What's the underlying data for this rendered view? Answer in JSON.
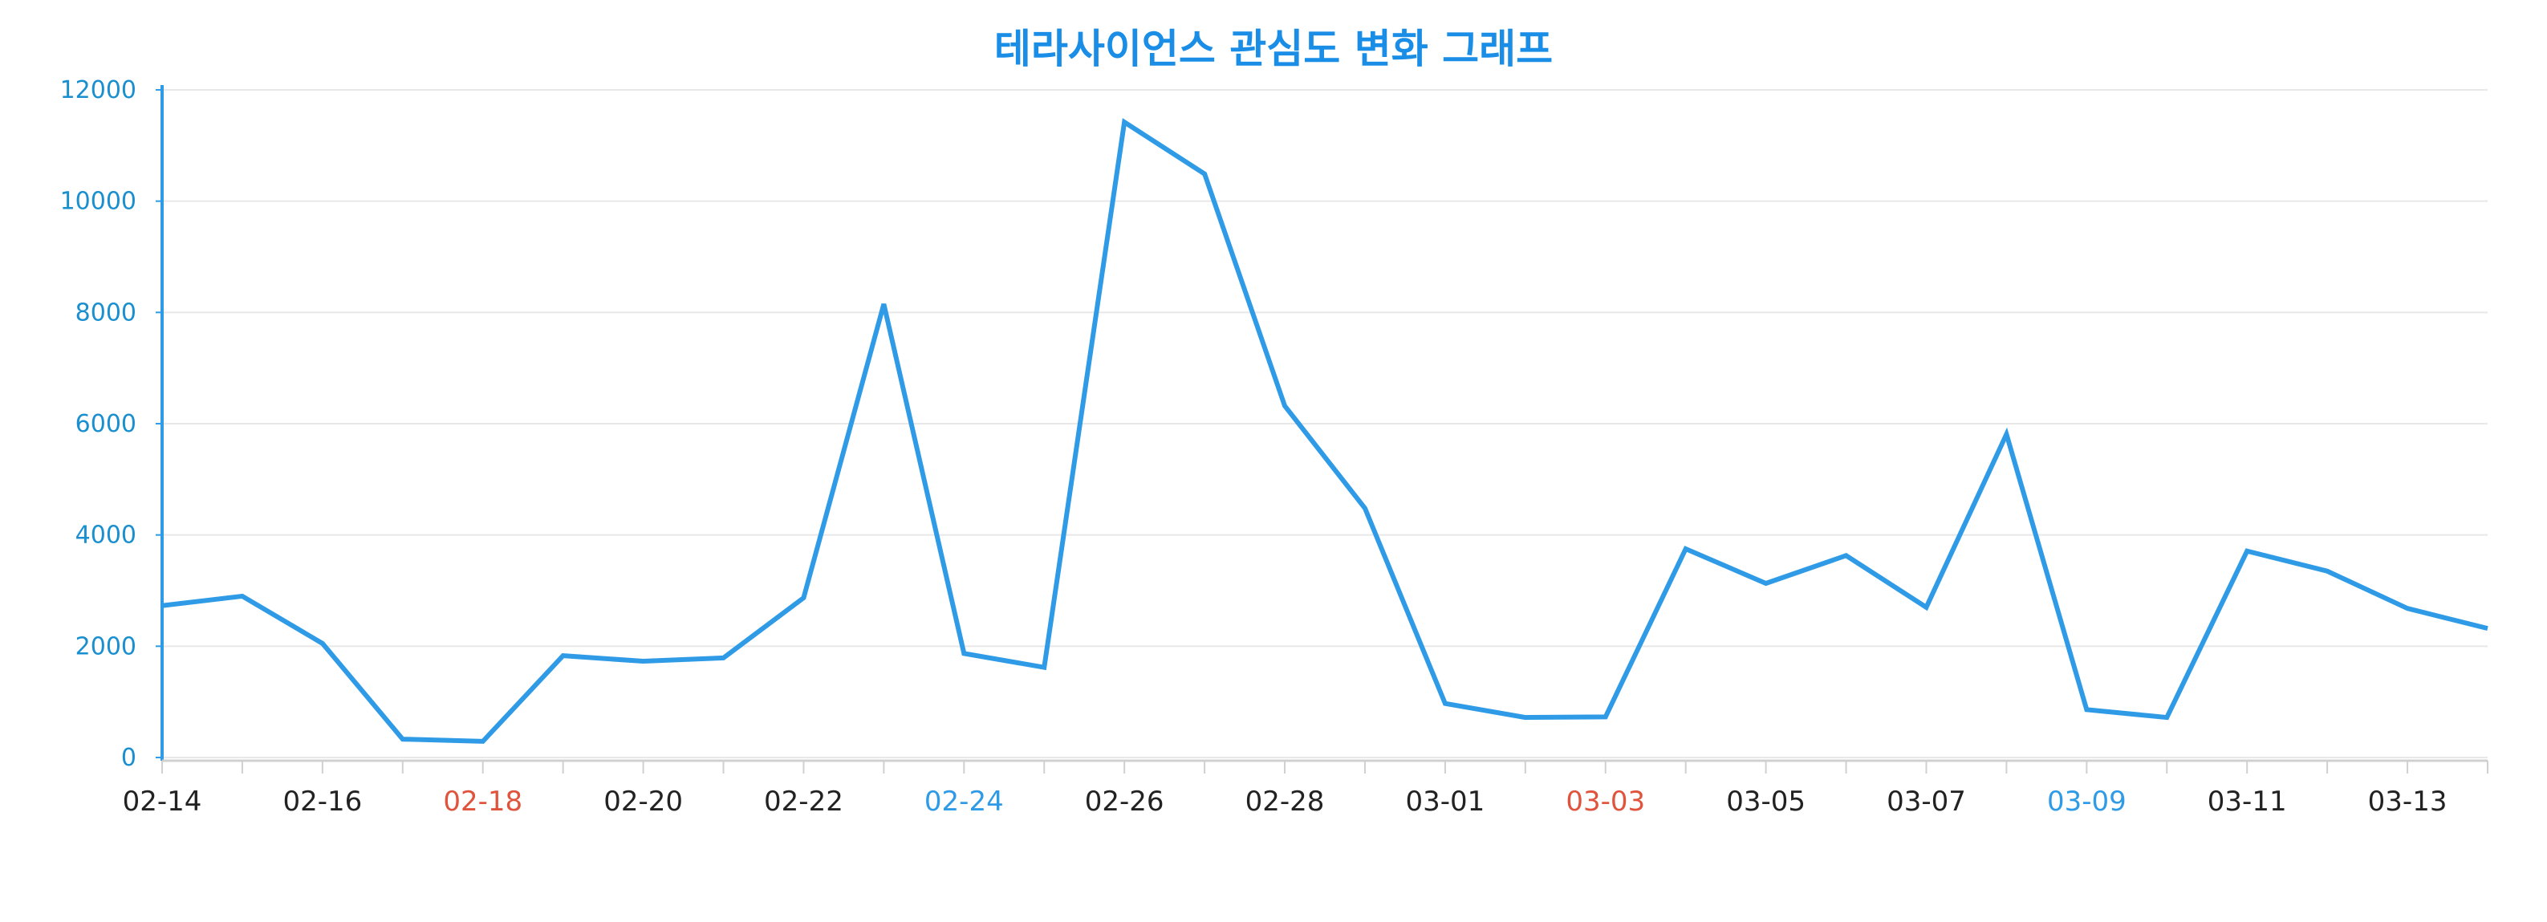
{
  "chart_data": {
    "type": "line",
    "title": "테라사이언스 관심도 변화 그래프",
    "xlabel": "",
    "ylabel": "",
    "ylim": [
      0,
      12000
    ],
    "y_ticks": [
      "0",
      "2000",
      "4000",
      "6000",
      "8000",
      "10000",
      "12000"
    ],
    "x": [
      "02-14",
      "02-15",
      "02-16",
      "02-17",
      "02-18",
      "02-19",
      "02-20",
      "02-21",
      "02-22",
      "02-23",
      "02-24",
      "02-25",
      "02-26",
      "02-27",
      "02-28",
      "02-29",
      "03-01",
      "03-02",
      "03-03",
      "03-04",
      "03-05",
      "03-06",
      "03-07",
      "03-08",
      "03-09",
      "03-10",
      "03-11",
      "03-12",
      "03-13",
      "03-14"
    ],
    "x_tick_labels": [
      "02-14",
      "02-16",
      "02-18",
      "02-20",
      "02-22",
      "02-24",
      "02-26",
      "02-28",
      "03-01",
      "03-03",
      "03-05",
      "03-07",
      "03-09",
      "03-11",
      "03-13"
    ],
    "series": [
      {
        "values": [
          2730,
          2900,
          2050,
          330,
          290,
          1830,
          1730,
          1790,
          2870,
          8150,
          1870,
          1620,
          11420,
          10490,
          6320,
          4480,
          970,
          720,
          730,
          3750,
          3130,
          3630,
          2700,
          5810,
          860,
          720,
          3710,
          3350,
          2680,
          2320
        ]
      }
    ],
    "grid": true,
    "colors": {
      "line": "#2f9be6",
      "title": "#1a8ee6",
      "y_tick": "#1a8fcf",
      "y_axis": "#2f9be6",
      "x_tick_default": "#222222",
      "x_tick_red": "#e0533d",
      "x_tick_blue": "#2f9be6",
      "grid": "#e8e8e8",
      "x_axis": "#d0d0d0"
    },
    "x_tick_color_map": {
      "02-18": "red",
      "02-24": "blue",
      "03-03": "red",
      "03-09": "blue"
    }
  }
}
